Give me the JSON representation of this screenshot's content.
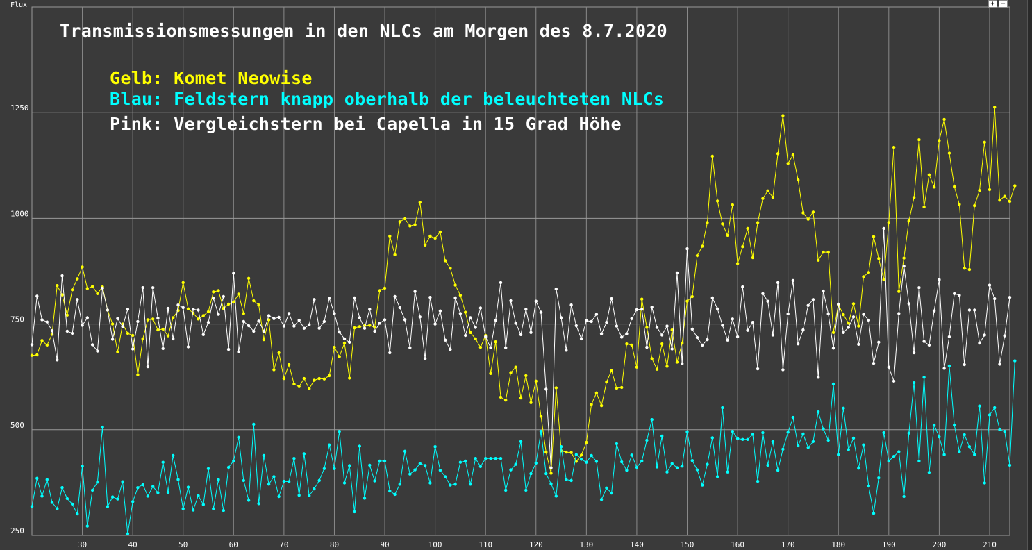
{
  "chart_data": {
    "type": "line",
    "title": "Transmissionsmessungen in den NLCs am Morgen des 8.7.2020",
    "ylabel": "Flux",
    "xlim": [
      20,
      214
    ],
    "ylim": [
      250,
      1500
    ],
    "x_ticks": [
      30,
      40,
      50,
      60,
      70,
      80,
      90,
      100,
      110,
      120,
      130,
      140,
      150,
      160,
      170,
      180,
      190,
      200,
      210
    ],
    "y_ticks": [
      250,
      500,
      750,
      1000,
      1250
    ],
    "grid": true,
    "legend_lines": [
      {
        "text": "Gelb: Komet Neowise",
        "color": "#ffff00"
      },
      {
        "text": "Blau: Feldstern knapp oberhalb der beleuchteten NLCs",
        "color": "#00ffff"
      },
      {
        "text": "Pink: Vergleichstern bei Capella in 15 Grad Höhe",
        "color": "#ffffff"
      }
    ],
    "x_start": 20,
    "series": [
      {
        "color": "#ffff00",
        "values": [
          676,
          677,
          711,
          700,
          726,
          841,
          819,
          771,
          831,
          857,
          885,
          834,
          839,
          822,
          838,
          783,
          750,
          684,
          750,
          728,
          723,
          630,
          715,
          760,
          762,
          736,
          738,
          722,
          765,
          782,
          848,
          786,
          776,
          762,
          770,
          779,
          826,
          829,
          787,
          797,
          802,
          821,
          775,
          858,
          805,
          795,
          713,
          760,
          642,
          682,
          621,
          654,
          608,
          602,
          621,
          597,
          617,
          621,
          620,
          628,
          695,
          673,
          705,
          622,
          741,
          744,
          746,
          747,
          742,
          829,
          835,
          958,
          914,
          992,
          999,
          982,
          985,
          1038,
          937,
          958,
          953,
          968,
          900,
          882,
          842,
          818,
          778,
          730,
          715,
          695,
          723,
          633,
          708,
          577,
          570,
          635,
          648,
          575,
          628,
          564,
          615,
          532,
          447,
          397,
          599,
          450,
          447,
          446,
          425,
          440,
          470,
          560,
          587,
          557,
          613,
          640,
          598,
          600,
          703,
          700,
          648,
          809,
          742,
          668,
          643,
          703,
          650,
          736,
          660,
          705,
          804,
          815,
          912,
          934,
          990,
          1147,
          1041,
          987,
          960,
          1032,
          893,
          933,
          976,
          907,
          990,
          1047,
          1065,
          1050,
          1153,
          1243,
          1130,
          1150,
          1091,
          1013,
          998,
          1015,
          901,
          920,
          920,
          730,
          796,
          772,
          752,
          798,
          745,
          862,
          872,
          957,
          905,
          855,
          990,
          1168,
          827,
          906,
          994,
          1049,
          1186,
          1027,
          1103,
          1074,
          1184,
          1234,
          1154,
          1075,
          1033,
          882,
          879,
          1030,
          1066,
          1180,
          1068,
          1263,
          1043,
          1052,
          1040,
          1077
        ]
      },
      {
        "color": "#ffffff",
        "values": [
          701,
          816,
          760,
          755,
          734,
          665,
          864,
          733,
          728,
          808,
          747,
          765,
          701,
          686,
          835,
          783,
          714,
          763,
          744,
          785,
          691,
          756,
          836,
          649,
          836,
          764,
          692,
          787,
          715,
          795,
          789,
          696,
          785,
          783,
          725,
          754,
          811,
          773,
          815,
          690,
          870,
          684,
          756,
          746,
          733,
          757,
          733,
          770,
          763,
          766,
          745,
          775,
          745,
          759,
          740,
          748,
          808,
          740,
          756,
          811,
          775,
          731,
          715,
          707,
          812,
          765,
          740,
          785,
          733,
          752,
          760,
          682,
          815,
          789,
          760,
          694,
          827,
          767,
          668,
          813,
          750,
          781,
          712,
          690,
          812,
          775,
          723,
          765,
          742,
          788,
          720,
          694,
          759,
          848,
          694,
          805,
          752,
          725,
          785,
          730,
          804,
          778,
          596,
          410,
          833,
          765,
          688,
          795,
          746,
          715,
          758,
          756,
          773,
          727,
          754,
          810,
          745,
          719,
          727,
          763,
          784,
          785,
          695,
          790,
          742,
          724,
          745,
          691,
          871,
          656,
          928,
          738,
          718,
          700,
          713,
          812,
          786,
          747,
          712,
          762,
          720,
          838,
          735,
          754,
          644,
          822,
          804,
          724,
          848,
          642,
          774,
          853,
          703,
          736,
          794,
          808,
          624,
          828,
          774,
          693,
          797,
          730,
          742,
          767,
          702,
          773,
          759,
          657,
          707,
          976,
          648,
          615,
          775,
          887,
          798,
          682,
          836,
          709,
          700,
          781,
          855,
          645,
          720,
          822,
          818,
          654,
          783,
          783,
          705,
          724,
          842,
          810,
          655,
          722,
          813
        ]
      },
      {
        "color": "#00ffff",
        "values": [
          318,
          385,
          343,
          382,
          328,
          313,
          363,
          337,
          324,
          301,
          414,
          272,
          357,
          376,
          506,
          318,
          341,
          336,
          377,
          254,
          330,
          363,
          370,
          343,
          366,
          351,
          423,
          352,
          439,
          382,
          313,
          364,
          310,
          344,
          323,
          408,
          313,
          382,
          309,
          411,
          426,
          482,
          380,
          333,
          513,
          325,
          439,
          371,
          389,
          342,
          378,
          377,
          432,
          345,
          443,
          344,
          360,
          380,
          408,
          464,
          408,
          496,
          374,
          415,
          306,
          461,
          338,
          416,
          379,
          426,
          426,
          355,
          347,
          371,
          449,
          395,
          405,
          420,
          415,
          374,
          460,
          404,
          389,
          369,
          371,
          423,
          426,
          371,
          432,
          413,
          432,
          432,
          432,
          432,
          357,
          405,
          418,
          472,
          357,
          396,
          421,
          496,
          396,
          372,
          343,
          460,
          382,
          380,
          441,
          430,
          423,
          439,
          425,
          335,
          362,
          350,
          467,
          424,
          404,
          440,
          411,
          426,
          475,
          524,
          412,
          485,
          400,
          420,
          410,
          414,
          495,
          427,
          405,
          369,
          418,
          481,
          389,
          552,
          400,
          496,
          479,
          477,
          477,
          489,
          378,
          493,
          416,
          472,
          404,
          454,
          494,
          529,
          462,
          490,
          458,
          472,
          542,
          502,
          475,
          608,
          441,
          551,
          453,
          480,
          409,
          464,
          367,
          302,
          386,
          493,
          426,
          437,
          448,
          342,
          492,
          611,
          426,
          624,
          399,
          511,
          483,
          441,
          651,
          511,
          448,
          488,
          460,
          441,
          556,
          374,
          535,
          552,
          500,
          496,
          416,
          663
        ]
      }
    ]
  }
}
